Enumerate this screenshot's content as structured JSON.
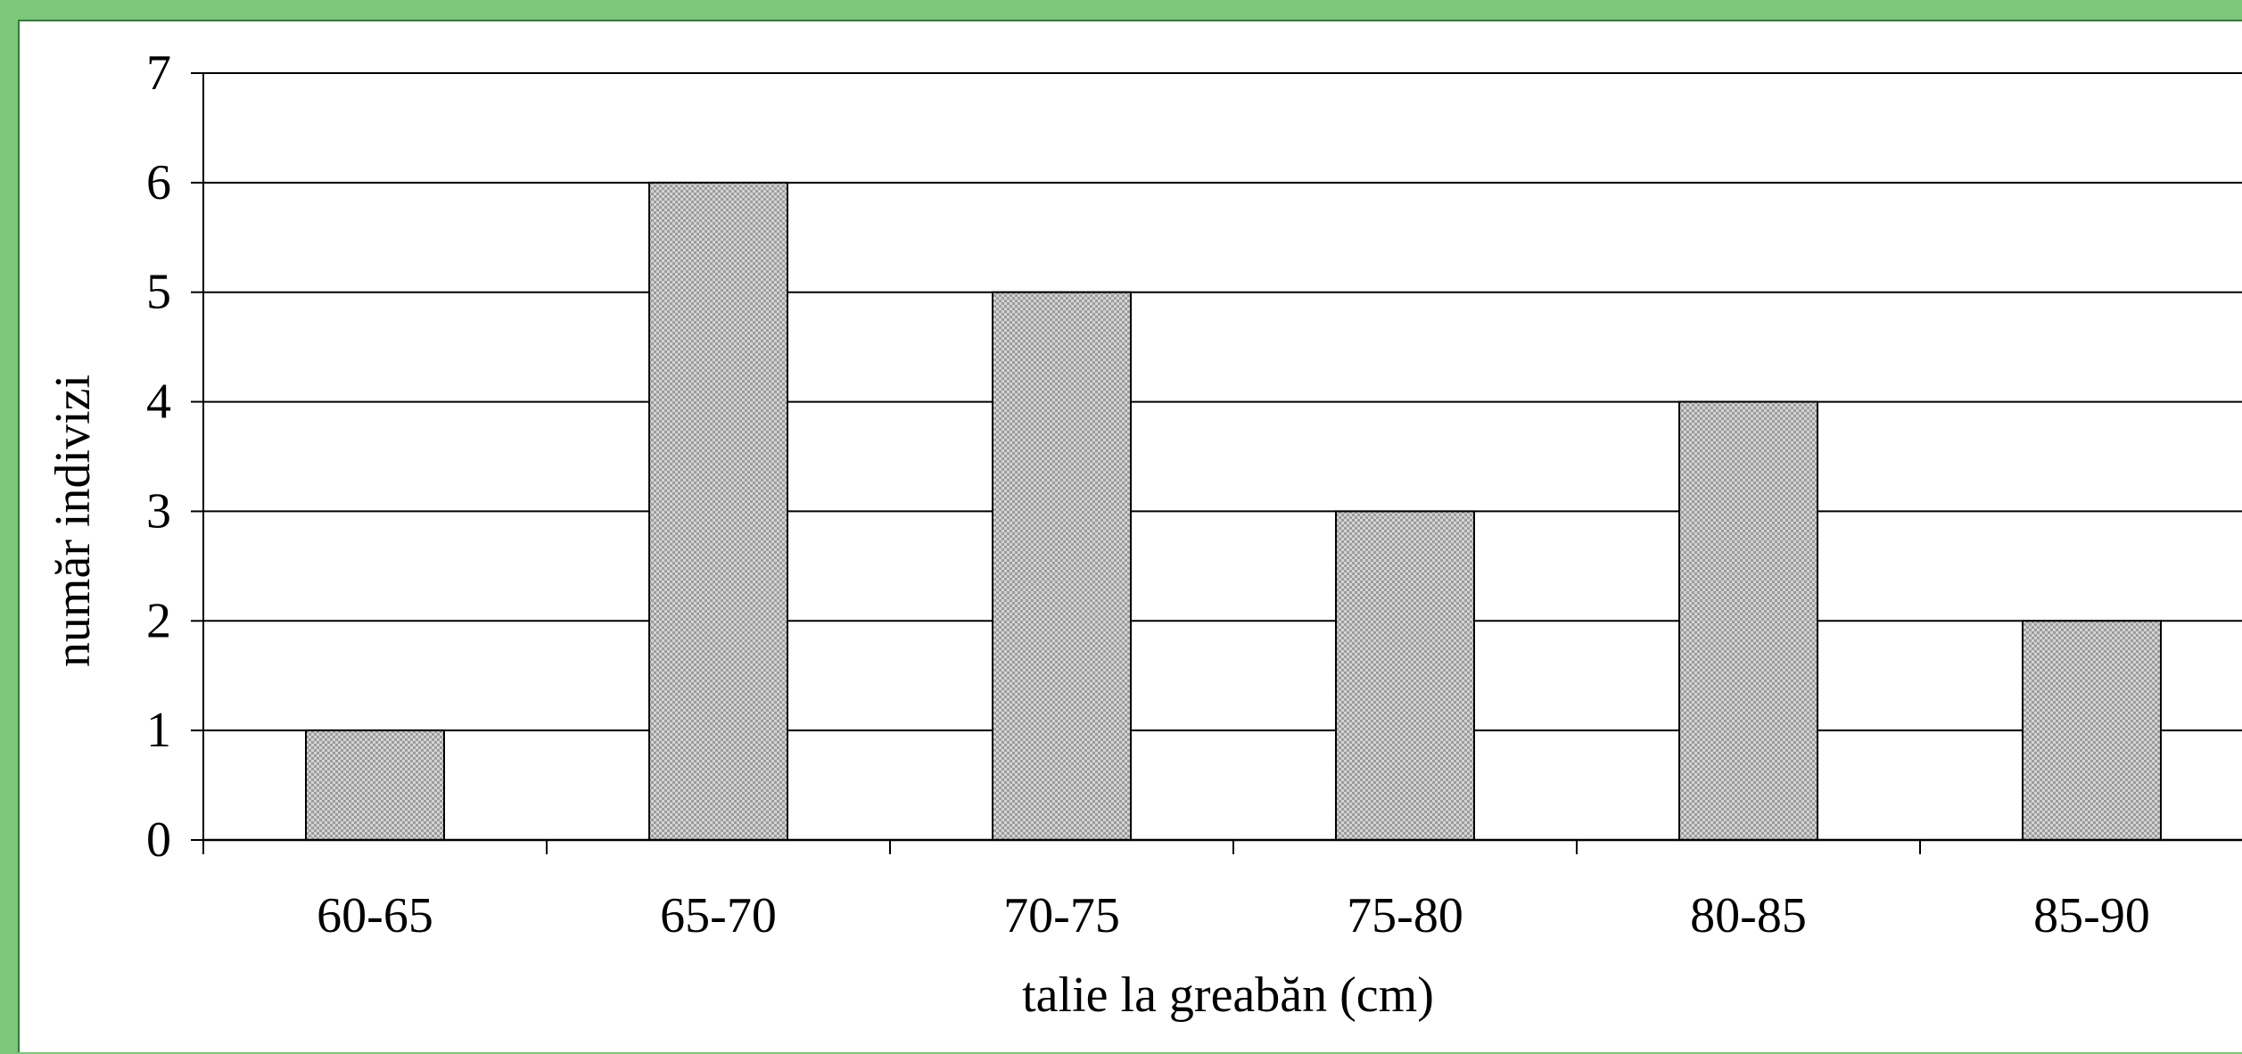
{
  "chart_data": {
    "type": "bar",
    "categories": [
      "60-65",
      "65-70",
      "70-75",
      "75-80",
      "80-85",
      "85-90"
    ],
    "values": [
      1,
      6,
      5,
      3,
      4,
      2
    ],
    "title": "",
    "xlabel": "talie la greabăn (cm)",
    "ylabel": "număr indivizi",
    "ylim": [
      0,
      7
    ],
    "yticks": [
      0,
      1,
      2,
      3,
      4,
      5,
      6,
      7
    ],
    "grid": true,
    "legend": "none",
    "bar_fill": "checkered gray",
    "colors": {
      "background": "#7dc77a",
      "frame_border": "#2e7d32",
      "plot_background": "#ffffff",
      "bar_fill": "#c8c8c8",
      "bar_stroke": "#000000",
      "gridline": "#000000"
    }
  }
}
